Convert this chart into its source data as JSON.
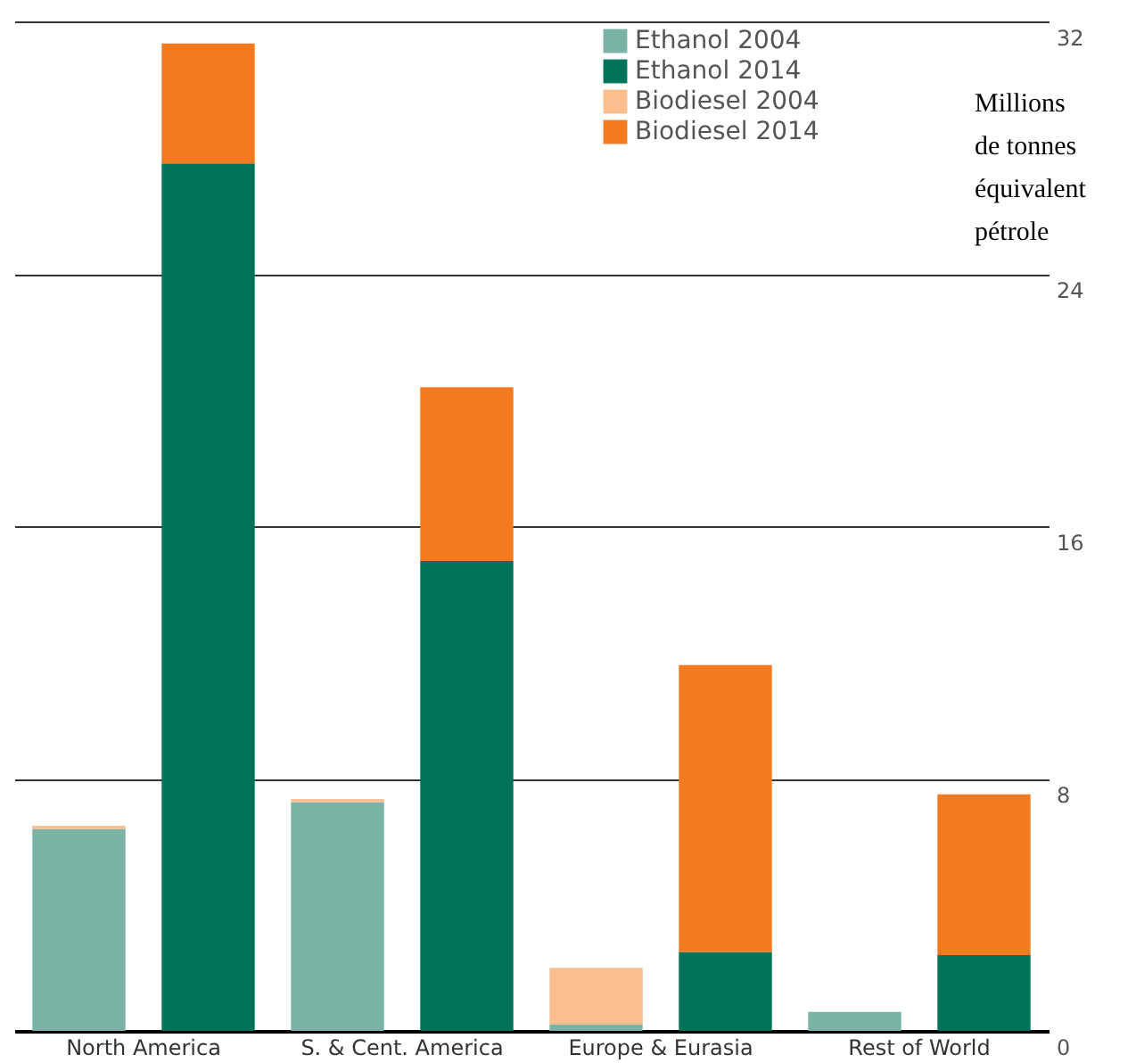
{
  "chart_data": {
    "type": "bar",
    "stacked": true,
    "categories": [
      "North America",
      null,
      "S. & Cent. America",
      null,
      "Europe & Eurasia",
      null,
      "Rest of World",
      null
    ],
    "series": [
      {
        "name": "Ethanol 2004",
        "color": "#7ab2a5",
        "values": [
          6.4,
          null,
          7.25,
          null,
          0.2,
          null,
          0.6,
          null
        ]
      },
      {
        "name": "Ethanol 2014",
        "color": "#00735a",
        "values": [
          null,
          27.5,
          null,
          14.9,
          null,
          2.5,
          null,
          2.4
        ]
      },
      {
        "name": "Biodiesel 2004",
        "color": "#fbbe8f",
        "values": [
          0.1,
          null,
          0.1,
          null,
          1.8,
          null,
          0,
          null
        ]
      },
      {
        "name": "Biodiesel 2014",
        "color": "#f47a20",
        "values": [
          null,
          3.8,
          null,
          5.5,
          null,
          9.1,
          null,
          5.1
        ]
      }
    ],
    "ylabel": "Millions\nde tonnes\néquivalent\npétrole",
    "ylim": [
      0,
      32
    ],
    "yticks": [
      0,
      8,
      16,
      24,
      32
    ],
    "grid": "y",
    "legend": "top right"
  }
}
